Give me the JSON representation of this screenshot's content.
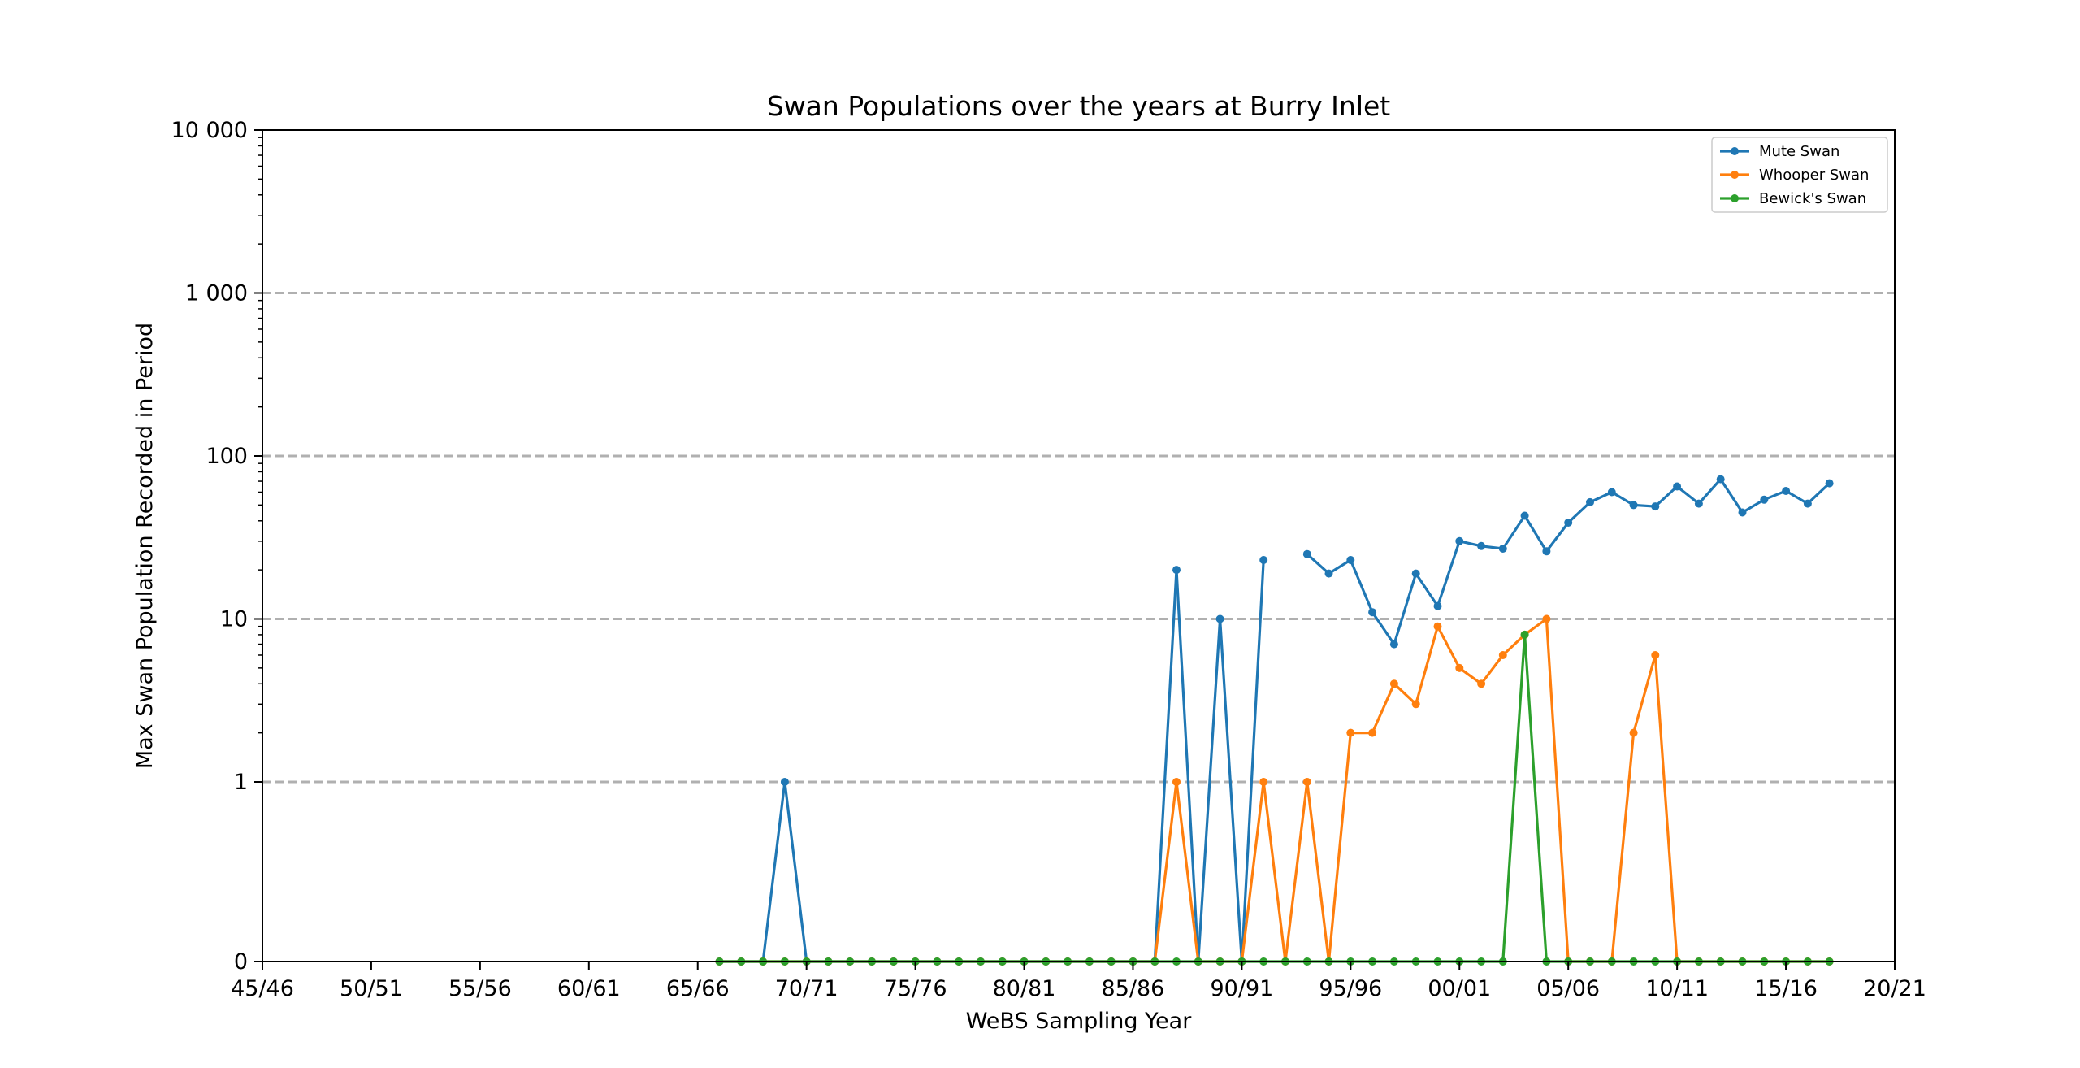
{
  "chart_data": {
    "type": "line",
    "title": "Swan Populations over the years at Burry Inlet",
    "xlabel": "WeBS Sampling Year",
    "ylabel": "Max Swan Population Recorded in Period",
    "yscale": "symlog",
    "grid": "y-dashed",
    "legend_position": "top-right",
    "x_tick_labels": [
      "45/46",
      "50/51",
      "55/56",
      "60/61",
      "65/66",
      "70/71",
      "75/76",
      "80/81",
      "85/86",
      "90/91",
      "95/96",
      "00/01",
      "05/06",
      "10/11",
      "15/16",
      "20/21"
    ],
    "y_tick_labels": [
      "0",
      "1",
      "10",
      "100",
      "1 000",
      "10 000"
    ],
    "x_range": [
      1945,
      2020
    ],
    "y_range": [
      0,
      10000
    ],
    "series": [
      {
        "name": "Mute Swan",
        "color": "#1f77b4",
        "points": [
          [
            1966,
            0
          ],
          [
            1967,
            0
          ],
          [
            1968,
            0
          ],
          [
            1969,
            1
          ],
          [
            1970,
            0
          ],
          [
            1971,
            0
          ],
          [
            1972,
            0
          ],
          [
            1973,
            0
          ],
          [
            1974,
            0
          ],
          [
            1975,
            0
          ],
          [
            1976,
            0
          ],
          [
            1977,
            0
          ],
          [
            1978,
            0
          ],
          [
            1979,
            0
          ],
          [
            1980,
            0
          ],
          [
            1981,
            0
          ],
          [
            1982,
            0
          ],
          [
            1983,
            0
          ],
          [
            1984,
            0
          ],
          [
            1985,
            0
          ],
          [
            1986,
            0
          ],
          [
            1987,
            20
          ],
          [
            1988,
            0
          ],
          [
            1989,
            10
          ],
          [
            1990,
            0
          ],
          [
            1991,
            23
          ],
          null,
          [
            1993,
            25
          ],
          [
            1994,
            19
          ],
          [
            1995,
            23
          ],
          [
            1996,
            11
          ],
          [
            1997,
            7
          ],
          [
            1998,
            19
          ],
          [
            1999,
            12
          ],
          [
            2000,
            30
          ],
          [
            2001,
            28
          ],
          [
            2002,
            27
          ],
          [
            2003,
            43
          ],
          [
            2004,
            26
          ],
          [
            2005,
            39
          ],
          [
            2006,
            52
          ],
          [
            2007,
            60
          ],
          [
            2008,
            50
          ],
          [
            2009,
            49
          ],
          [
            2010,
            65
          ],
          [
            2011,
            51
          ],
          [
            2012,
            72
          ],
          [
            2013,
            45
          ],
          [
            2014,
            54
          ],
          [
            2015,
            61
          ],
          [
            2016,
            51
          ],
          [
            2017,
            68
          ]
        ]
      },
      {
        "name": "Whooper Swan",
        "color": "#ff7f0e",
        "points": [
          [
            1966,
            0
          ],
          [
            1967,
            0
          ],
          [
            1968,
            0
          ],
          [
            1969,
            0
          ],
          [
            1970,
            0
          ],
          [
            1971,
            0
          ],
          [
            1972,
            0
          ],
          [
            1973,
            0
          ],
          [
            1974,
            0
          ],
          [
            1975,
            0
          ],
          [
            1976,
            0
          ],
          [
            1977,
            0
          ],
          [
            1978,
            0
          ],
          [
            1979,
            0
          ],
          [
            1980,
            0
          ],
          [
            1981,
            0
          ],
          [
            1982,
            0
          ],
          [
            1983,
            0
          ],
          [
            1984,
            0
          ],
          [
            1985,
            0
          ],
          [
            1986,
            0
          ],
          [
            1987,
            1
          ],
          [
            1988,
            0
          ],
          [
            1989,
            0
          ],
          [
            1990,
            0
          ],
          [
            1991,
            1
          ],
          [
            1992,
            0
          ],
          [
            1993,
            1
          ],
          [
            1994,
            0
          ],
          [
            1995,
            2
          ],
          [
            1996,
            2
          ],
          [
            1997,
            4
          ],
          [
            1998,
            3
          ],
          [
            1999,
            9
          ],
          [
            2000,
            5
          ],
          [
            2001,
            4
          ],
          [
            2002,
            6
          ],
          [
            2003,
            8
          ],
          [
            2004,
            10
          ],
          [
            2005,
            0
          ],
          [
            2006,
            0
          ],
          [
            2007,
            0
          ],
          [
            2008,
            2
          ],
          [
            2009,
            6
          ],
          [
            2010,
            0
          ],
          [
            2011,
            0
          ],
          [
            2012,
            0
          ],
          [
            2013,
            0
          ],
          [
            2014,
            0
          ],
          [
            2015,
            0
          ],
          [
            2016,
            0
          ],
          [
            2017,
            0
          ]
        ]
      },
      {
        "name": "Bewick's Swan",
        "color": "#2ca02c",
        "points": [
          [
            1966,
            0
          ],
          [
            1967,
            0
          ],
          [
            1968,
            0
          ],
          [
            1969,
            0
          ],
          [
            1970,
            0
          ],
          [
            1971,
            0
          ],
          [
            1972,
            0
          ],
          [
            1973,
            0
          ],
          [
            1974,
            0
          ],
          [
            1975,
            0
          ],
          [
            1976,
            0
          ],
          [
            1977,
            0
          ],
          [
            1978,
            0
          ],
          [
            1979,
            0
          ],
          [
            1980,
            0
          ],
          [
            1981,
            0
          ],
          [
            1982,
            0
          ],
          [
            1983,
            0
          ],
          [
            1984,
            0
          ],
          [
            1985,
            0
          ],
          [
            1986,
            0
          ],
          [
            1987,
            0
          ],
          [
            1988,
            0
          ],
          [
            1989,
            0
          ],
          [
            1990,
            0
          ],
          [
            1991,
            0
          ],
          [
            1992,
            0
          ],
          [
            1993,
            0
          ],
          [
            1994,
            0
          ],
          [
            1995,
            0
          ],
          [
            1996,
            0
          ],
          [
            1997,
            0
          ],
          [
            1998,
            0
          ],
          [
            1999,
            0
          ],
          [
            2000,
            0
          ],
          [
            2001,
            0
          ],
          [
            2002,
            0
          ],
          [
            2003,
            8
          ],
          [
            2004,
            0
          ],
          [
            2005,
            0
          ],
          [
            2006,
            0
          ],
          [
            2007,
            0
          ],
          [
            2008,
            0
          ],
          [
            2009,
            0
          ],
          [
            2010,
            0
          ],
          [
            2011,
            0
          ],
          [
            2012,
            0
          ],
          [
            2013,
            0
          ],
          [
            2014,
            0
          ],
          [
            2015,
            0
          ],
          [
            2016,
            0
          ],
          [
            2017,
            0
          ]
        ]
      }
    ]
  }
}
